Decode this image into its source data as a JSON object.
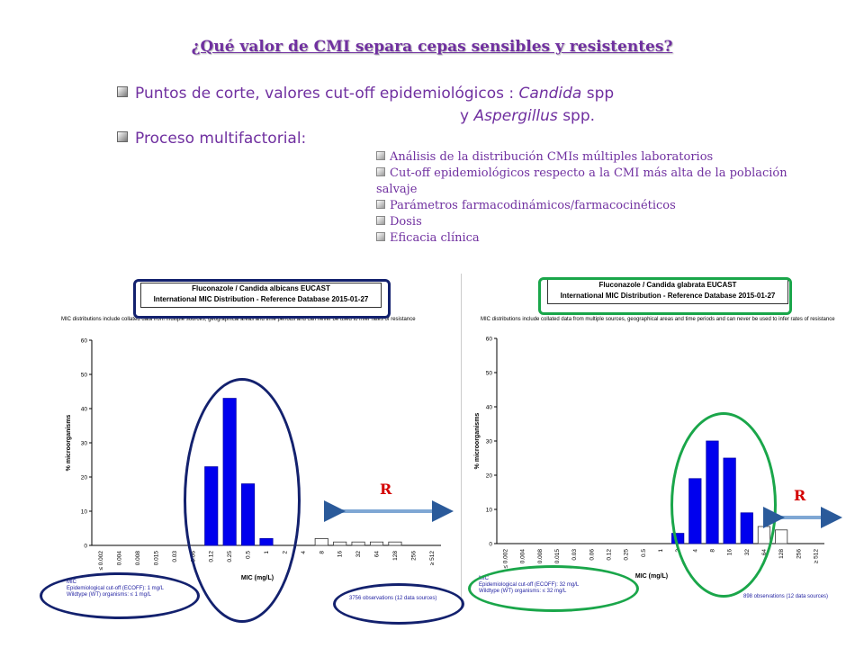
{
  "slide": {
    "title": "¿Qué valor de CMI separa cepas sensibles y resistentes?",
    "bullets": [
      {
        "pre": "Puntos de corte, valores cut-off epidemiológicos : ",
        "italic": "Candida",
        "post": " spp"
      },
      {
        "pre": "y ",
        "italic": "Aspergillus",
        "post": " spp."
      },
      {
        "pre": "Proceso multifactorial:",
        "italic": "",
        "post": ""
      }
    ],
    "subbullets": [
      "Análisis de la distribución CMIs múltiples laboratorios",
      "Cut-off epidemiológicos respecto a la CMI más alta de la población salvaje",
      "Parámetros farmacodinámicos/farmacocinéticos",
      "Dosis",
      "Eficacia clínica"
    ],
    "r_label": "R"
  },
  "chart_data": [
    {
      "type": "bar",
      "title": "Fluconazole / Candida albicans EUCAST",
      "subtitle": "International MIC Distribution - Reference Database 2015-01-27",
      "note": "MIC distributions include collated data from multiple sources, geographical areas and time periods and can never be used to infer rates of resistance",
      "xlabel": "MIC (mg/L)",
      "ylabel": "% microorganisms",
      "ylim": [
        0,
        60
      ],
      "yticks": [
        0,
        10,
        20,
        30,
        40,
        50,
        60
      ],
      "categories": [
        "≤ 0.002",
        "0.004",
        "0.008",
        "0.015",
        "0.03",
        "0.06",
        "0.12",
        "0.25",
        "0.5",
        "1",
        "2",
        "4",
        "8",
        "16",
        "32",
        "64",
        "128",
        "256",
        "≥ 512"
      ],
      "values": [
        0,
        0,
        0,
        0,
        0,
        0,
        23,
        43,
        18,
        2,
        0,
        0,
        2,
        1,
        1,
        1,
        1,
        0,
        0
      ],
      "wildtype_cutoff_index": 9,
      "footer_left": [
        "MIC",
        "Epidemiological cut-off (ECOFF): 1 mg/L",
        "Wildtype (WT) organisms: ≤ 1 mg/L"
      ],
      "footer_right": "3756 observations (12 data sources)",
      "accent": "#13216e"
    },
    {
      "type": "bar",
      "title": "Fluconazole / Candida glabrata EUCAST",
      "subtitle": "International MIC Distribution - Reference Database 2015-01-27",
      "note": "MIC distributions include collated data from multiple sources, geographical areas and time periods and can never be used to infer rates of resistance",
      "xlabel": "MIC (mg/L)",
      "ylabel": "% microorganisms",
      "ylim": [
        0,
        60
      ],
      "yticks": [
        0,
        10,
        20,
        30,
        40,
        50,
        60
      ],
      "categories": [
        "≤ 0.002",
        "0.004",
        "0.008",
        "0.015",
        "0.03",
        "0.06",
        "0.12",
        "0.25",
        "0.5",
        "1",
        "2",
        "4",
        "8",
        "16",
        "32",
        "64",
        "128",
        "256",
        "≥ 512"
      ],
      "values": [
        0,
        0,
        0,
        0,
        0,
        0,
        0,
        0,
        0,
        0,
        3,
        19,
        30,
        25,
        9,
        5,
        4,
        0,
        0
      ],
      "wildtype_cutoff_index": 14,
      "footer_left": [
        "MIC",
        "Epidemiological cut-off (ECOFF): 32 mg/L",
        "Wildtype (WT) organisms: ≤ 32 mg/L"
      ],
      "footer_right": "898 observations (12 data sources)",
      "accent": "#1aa64a"
    }
  ]
}
